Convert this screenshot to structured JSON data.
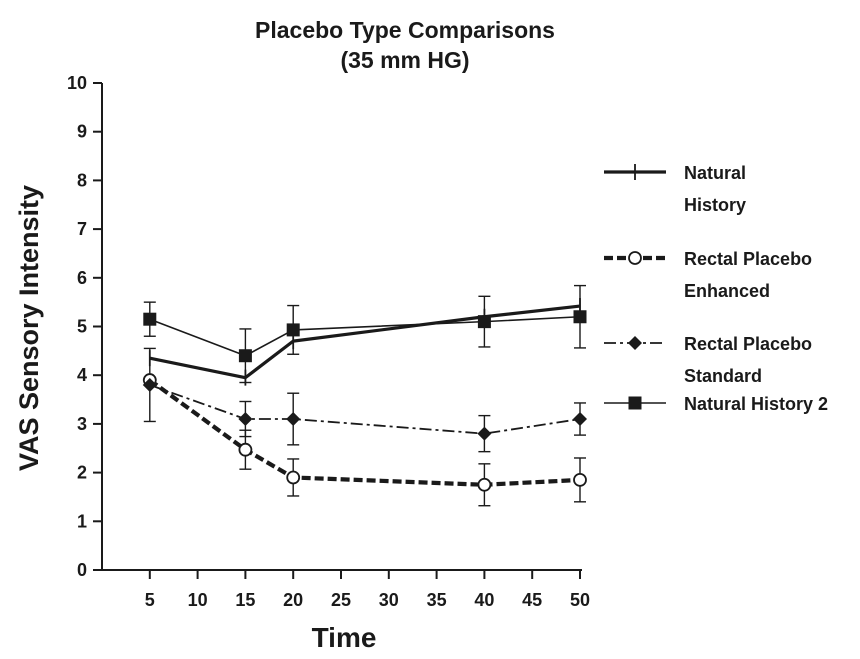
{
  "chart_data": {
    "type": "line",
    "title": [
      "Placebo Type Comparisons",
      "(35 mm HG)"
    ],
    "xlabel": "Time",
    "ylabel": "VAS Sensory Intensity",
    "xlim": [
      0,
      50
    ],
    "ylim": [
      0,
      10
    ],
    "x_ticks": [
      5,
      10,
      15,
      20,
      25,
      30,
      35,
      40,
      45,
      50
    ],
    "y_ticks": [
      0,
      1,
      2,
      3,
      4,
      5,
      6,
      7,
      8,
      9,
      10
    ],
    "grid": false,
    "legend_position": "right",
    "series": [
      {
        "name": [
          "Natural",
          "History"
        ],
        "marker": "plus",
        "line": "solid-thick",
        "x": [
          5,
          15,
          20,
          40,
          50
        ],
        "y": [
          4.35,
          3.95,
          4.7,
          5.2,
          5.42
        ],
        "err": [
          null,
          null,
          null,
          null,
          null
        ]
      },
      {
        "name": [
          "Rectal Placebo",
          "Enhanced"
        ],
        "marker": "open-circle",
        "line": "dashed-thick",
        "x": [
          5,
          15,
          20,
          40,
          50
        ],
        "y": [
          3.9,
          2.47,
          1.9,
          1.75,
          1.85
        ],
        "err": [
          null,
          0.4,
          0.38,
          0.43,
          0.45
        ]
      },
      {
        "name": [
          "Rectal Placebo",
          "Standard"
        ],
        "marker": "diamond",
        "line": "dash-dot",
        "x": [
          5,
          15,
          20,
          40,
          50
        ],
        "y": [
          3.8,
          3.1,
          3.1,
          2.8,
          3.1
        ],
        "err": [
          0.75,
          0.36,
          0.53,
          0.37,
          0.33
        ]
      },
      {
        "name": [
          "Natural History 2"
        ],
        "marker": "filled-square",
        "line": "solid-thin",
        "x": [
          5,
          15,
          20,
          40,
          50
        ],
        "y": [
          5.15,
          4.4,
          4.93,
          5.1,
          5.2
        ],
        "err": [
          0.35,
          0.55,
          0.5,
          0.52,
          0.64
        ]
      }
    ]
  }
}
